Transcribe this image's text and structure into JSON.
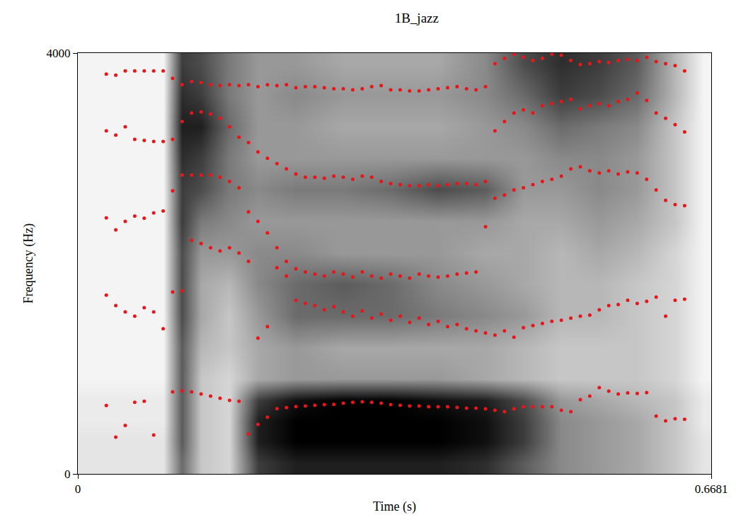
{
  "chart_data": {
    "type": "scatter",
    "title": "1B_jazz",
    "x_label": "Time (s)",
    "y_label": "Frequency (Hz)",
    "xlim": [
      0,
      0.6681
    ],
    "xticks": [
      0,
      0.6681
    ],
    "ylim": [
      0,
      4000
    ],
    "yticks": [
      0,
      4000
    ],
    "grid": false,
    "x": [
      0.03,
      0.04,
      0.05,
      0.06,
      0.07,
      0.08,
      0.09,
      0.1,
      0.11,
      0.12,
      0.13,
      0.14,
      0.15,
      0.16,
      0.17,
      0.18,
      0.19,
      0.2,
      0.21,
      0.22,
      0.23,
      0.24,
      0.25,
      0.26,
      0.27,
      0.28,
      0.29,
      0.3,
      0.31,
      0.32,
      0.33,
      0.34,
      0.35,
      0.36,
      0.37,
      0.38,
      0.39,
      0.4,
      0.41,
      0.42,
      0.43,
      0.44,
      0.45,
      0.46,
      0.47,
      0.48,
      0.49,
      0.5,
      0.51,
      0.52,
      0.53,
      0.54,
      0.55,
      0.56,
      0.57,
      0.58,
      0.59,
      0.6,
      0.61,
      0.62,
      0.63,
      0.64
    ],
    "series": [
      {
        "color": "#e8161a",
        "marker": "circle",
        "values": [
          650,
          350,
          460,
          680,
          690,
          370,
          null,
          780,
          790,
          780,
          760,
          740,
          720,
          700,
          690,
          380,
          470,
          540,
          620,
          630,
          640,
          645,
          652,
          659,
          660,
          672,
          680,
          686,
          680,
          672,
          659,
          652,
          645,
          645,
          639,
          639,
          639,
          632,
          625,
          625,
          618,
          605,
          592,
          618,
          639,
          639,
          639,
          639,
          605,
          592,
          706,
          740,
          820,
          787,
          760,
          770,
          765,
          773,
          550,
          504,
          525,
          520
        ]
      },
      {
        "color": "#e8161a",
        "marker": "circle",
        "values": [
          1700,
          1600,
          1540,
          1500,
          1580,
          1540,
          1380,
          1730,
          1740,
          2220,
          2190,
          2150,
          2120,
          2150,
          2100,
          2020,
          1290,
          1400,
          1960,
          1880,
          1650,
          1620,
          1600,
          1560,
          1590,
          1540,
          1500,
          1550,
          1480,
          1520,
          1460,
          1500,
          1440,
          1480,
          1420,
          1450,
          1400,
          1420,
          1380,
          1360,
          1340,
          1320,
          1360,
          1300,
          1390,
          1410,
          1430,
          1450,
          1460,
          1480,
          1500,
          1510,
          1560,
          1600,
          1610,
          1650,
          1620,
          1640,
          1680,
          1500,
          1650,
          1660
        ]
      },
      {
        "color": "#e8161a",
        "marker": "circle",
        "values": [
          2434,
          2320,
          2400,
          2450,
          2430,
          2480,
          2500,
          2690,
          2840,
          2840,
          2840,
          2840,
          2820,
          2780,
          2720,
          2490,
          2400,
          2290,
          2150,
          2020,
          1950,
          1920,
          1900,
          1880,
          1920,
          1900,
          1870,
          1920,
          1880,
          1860,
          1900,
          1880,
          1860,
          1900,
          1880,
          1870,
          1880,
          1900,
          1910,
          1920,
          2350,
          2620,
          2650,
          2700,
          2720,
          2750,
          2780,
          2800,
          2830,
          2900,
          2920,
          2880,
          2860,
          2880,
          2850,
          2870,
          2860,
          2800,
          2700,
          2600,
          2560,
          2550
        ]
      },
      {
        "color": "#e8161a",
        "marker": "circle",
        "values": [
          3260,
          3220,
          3300,
          3180,
          3170,
          3160,
          3160,
          3180,
          3350,
          3430,
          3440,
          3420,
          3380,
          3300,
          3200,
          3150,
          3060,
          3000,
          2950,
          2900,
          2850,
          2820,
          2820,
          2810,
          2830,
          2820,
          2800,
          2830,
          2820,
          2780,
          2760,
          2750,
          2740,
          2740,
          2750,
          2740,
          2750,
          2760,
          2760,
          2750,
          2780,
          3260,
          3350,
          3430,
          3460,
          3430,
          3500,
          3520,
          3540,
          3560,
          3470,
          3500,
          3520,
          3500,
          3540,
          3560,
          3620,
          3550,
          3430,
          3380,
          3320,
          3250
        ]
      },
      {
        "color": "#e8161a",
        "marker": "circle",
        "values": [
          3800,
          3790,
          3830,
          3830,
          3830,
          3830,
          3830,
          3760,
          3700,
          3730,
          3720,
          3700,
          3690,
          3700,
          3690,
          3700,
          3680,
          3700,
          3690,
          3700,
          3670,
          3680,
          3680,
          3670,
          3660,
          3660,
          3650,
          3660,
          3680,
          3690,
          3650,
          3650,
          3640,
          3640,
          3650,
          3660,
          3670,
          3680,
          3660,
          3650,
          3680,
          3900,
          3950,
          3990,
          3960,
          3930,
          3950,
          3990,
          3980,
          3930,
          3890,
          3900,
          3920,
          3910,
          3930,
          3940,
          3930,
          3960,
          3920,
          3900,
          3880,
          3830
        ]
      }
    ],
    "spectrogram": {
      "time": [
        0.02,
        0.06,
        0.09,
        0.11,
        0.13,
        0.16,
        0.19,
        0.23,
        0.28,
        0.33,
        0.38,
        0.43,
        0.47,
        0.51,
        0.55,
        0.59,
        0.63,
        0.66
      ],
      "frequency": [
        100,
        300,
        500,
        700,
        900,
        1200,
        1500,
        1800,
        2100,
        2400,
        2700,
        3000,
        3300,
        3600,
        3900
      ],
      "intensity": [
        [
          0.2,
          0.2,
          0.2,
          0.6,
          0.3,
          0.25,
          0.75,
          0.85,
          0.85,
          0.85,
          0.85,
          0.8,
          0.65,
          0.5,
          0.45,
          0.4,
          0.3,
          0.2
        ],
        [
          0.2,
          0.2,
          0.2,
          0.65,
          0.3,
          0.25,
          0.85,
          0.95,
          0.95,
          0.95,
          0.95,
          0.9,
          0.75,
          0.5,
          0.45,
          0.4,
          0.3,
          0.2
        ],
        [
          0.18,
          0.18,
          0.18,
          0.65,
          0.3,
          0.25,
          0.85,
          0.95,
          0.95,
          0.95,
          0.95,
          0.9,
          0.75,
          0.5,
          0.45,
          0.4,
          0.3,
          0.18
        ],
        [
          0.18,
          0.18,
          0.18,
          0.65,
          0.3,
          0.25,
          0.75,
          0.9,
          0.95,
          0.95,
          0.9,
          0.85,
          0.7,
          0.45,
          0.4,
          0.35,
          0.3,
          0.18
        ],
        [
          0.15,
          0.15,
          0.15,
          0.65,
          0.3,
          0.25,
          0.4,
          0.45,
          0.45,
          0.45,
          0.45,
          0.4,
          0.35,
          0.3,
          0.3,
          0.3,
          0.25,
          0.15
        ],
        [
          0.15,
          0.15,
          0.15,
          0.65,
          0.35,
          0.3,
          0.4,
          0.45,
          0.4,
          0.4,
          0.4,
          0.4,
          0.35,
          0.3,
          0.3,
          0.3,
          0.25,
          0.15
        ],
        [
          0.15,
          0.15,
          0.15,
          0.7,
          0.4,
          0.3,
          0.45,
          0.6,
          0.6,
          0.6,
          0.55,
          0.5,
          0.45,
          0.35,
          0.35,
          0.3,
          0.25,
          0.15
        ],
        [
          0.15,
          0.15,
          0.15,
          0.7,
          0.4,
          0.35,
          0.5,
          0.6,
          0.65,
          0.6,
          0.5,
          0.45,
          0.4,
          0.35,
          0.35,
          0.3,
          0.25,
          0.15
        ],
        [
          0.15,
          0.15,
          0.15,
          0.7,
          0.45,
          0.45,
          0.5,
          0.5,
          0.45,
          0.45,
          0.45,
          0.4,
          0.4,
          0.35,
          0.4,
          0.35,
          0.25,
          0.15
        ],
        [
          0.15,
          0.15,
          0.15,
          0.75,
          0.55,
          0.5,
          0.45,
          0.45,
          0.45,
          0.45,
          0.45,
          0.45,
          0.4,
          0.4,
          0.45,
          0.4,
          0.3,
          0.15
        ],
        [
          0.15,
          0.15,
          0.15,
          0.75,
          0.7,
          0.55,
          0.5,
          0.55,
          0.55,
          0.6,
          0.7,
          0.65,
          0.45,
          0.45,
          0.5,
          0.45,
          0.3,
          0.15
        ],
        [
          0.15,
          0.15,
          0.15,
          0.8,
          0.75,
          0.55,
          0.45,
          0.45,
          0.45,
          0.45,
          0.45,
          0.45,
          0.45,
          0.5,
          0.5,
          0.45,
          0.3,
          0.15
        ],
        [
          0.15,
          0.15,
          0.15,
          0.85,
          0.85,
          0.6,
          0.45,
          0.45,
          0.4,
          0.4,
          0.4,
          0.45,
          0.5,
          0.6,
          0.55,
          0.5,
          0.3,
          0.15
        ],
        [
          0.15,
          0.15,
          0.15,
          0.8,
          0.75,
          0.55,
          0.45,
          0.5,
          0.45,
          0.45,
          0.45,
          0.5,
          0.6,
          0.75,
          0.7,
          0.6,
          0.35,
          0.15
        ],
        [
          0.15,
          0.15,
          0.15,
          0.75,
          0.7,
          0.55,
          0.45,
          0.45,
          0.4,
          0.4,
          0.4,
          0.5,
          0.7,
          0.8,
          0.75,
          0.65,
          0.35,
          0.15
        ]
      ]
    }
  }
}
